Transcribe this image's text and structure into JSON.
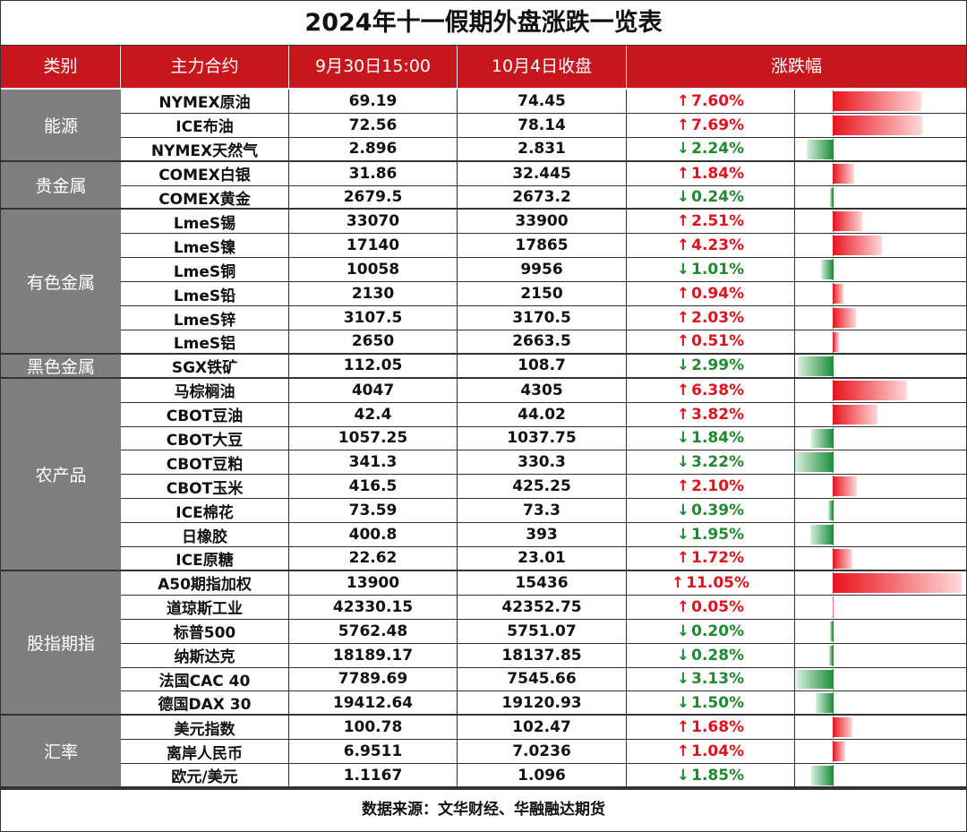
{
  "title": "2024年十一假期外盘涨跌一览表",
  "headers": [
    "类别",
    "主力合约",
    "9月30日15:00",
    "10月4日收盘",
    "涨跌幅"
  ],
  "footer": "数据来源：文华财经、华融融达期货",
  "colors": {
    "header_bg": "#c8161d",
    "category_bg": "#7f7f7f",
    "up": "#e0121d",
    "down": "#1f8a2f"
  },
  "chart_data": {
    "type": "table",
    "title": "2024年十一假期外盘涨跌一览表",
    "columns": [
      "类别",
      "主力合约",
      "9月30日15:00",
      "10月4日收盘",
      "涨跌幅"
    ],
    "groups": [
      {
        "category": "能源",
        "rows": [
          {
            "name": "NYMEX原油",
            "v1": "69.19",
            "v2": "74.45",
            "dir": "up",
            "pct": "7.60%",
            "value": 7.6
          },
          {
            "name": "ICE布油",
            "v1": "72.56",
            "v2": "78.14",
            "dir": "up",
            "pct": "7.69%",
            "value": 7.69
          },
          {
            "name": "NYMEX天然气",
            "v1": "2.896",
            "v2": "2.831",
            "dir": "down",
            "pct": "2.24%",
            "value": -2.24
          }
        ]
      },
      {
        "category": "贵金属",
        "rows": [
          {
            "name": "COMEX白银",
            "v1": "31.86",
            "v2": "32.445",
            "dir": "up",
            "pct": "1.84%",
            "value": 1.84
          },
          {
            "name": "COMEX黄金",
            "v1": "2679.5",
            "v2": "2673.2",
            "dir": "down",
            "pct": "0.24%",
            "value": -0.24
          }
        ]
      },
      {
        "category": "有色金属",
        "rows": [
          {
            "name": "LmeS锡",
            "v1": "33070",
            "v2": "33900",
            "dir": "up",
            "pct": "2.51%",
            "value": 2.51
          },
          {
            "name": "LmeS镍",
            "v1": "17140",
            "v2": "17865",
            "dir": "up",
            "pct": "4.23%",
            "value": 4.23
          },
          {
            "name": "LmeS铜",
            "v1": "10058",
            "v2": "9956",
            "dir": "down",
            "pct": "1.01%",
            "value": -1.01
          },
          {
            "name": "LmeS铅",
            "v1": "2130",
            "v2": "2150",
            "dir": "up",
            "pct": "0.94%",
            "value": 0.94
          },
          {
            "name": "LmeS锌",
            "v1": "3107.5",
            "v2": "3170.5",
            "dir": "up",
            "pct": "2.03%",
            "value": 2.03
          },
          {
            "name": "LmeS铝",
            "v1": "2650",
            "v2": "2663.5",
            "dir": "up",
            "pct": "0.51%",
            "value": 0.51
          }
        ]
      },
      {
        "category": "黑色金属",
        "rows": [
          {
            "name": "SGX铁矿",
            "v1": "112.05",
            "v2": "108.7",
            "dir": "down",
            "pct": "2.99%",
            "value": -2.99
          }
        ]
      },
      {
        "category": "农产品",
        "rows": [
          {
            "name": "马棕榈油",
            "v1": "4047",
            "v2": "4305",
            "dir": "up",
            "pct": "6.38%",
            "value": 6.38
          },
          {
            "name": "CBOT豆油",
            "v1": "42.4",
            "v2": "44.02",
            "dir": "up",
            "pct": "3.82%",
            "value": 3.82
          },
          {
            "name": "CBOT大豆",
            "v1": "1057.25",
            "v2": "1037.75",
            "dir": "down",
            "pct": "1.84%",
            "value": -1.84
          },
          {
            "name": "CBOT豆粕",
            "v1": "341.3",
            "v2": "330.3",
            "dir": "down",
            "pct": "3.22%",
            "value": -3.22
          },
          {
            "name": "CBOT玉米",
            "v1": "416.5",
            "v2": "425.25",
            "dir": "up",
            "pct": "2.10%",
            "value": 2.1
          },
          {
            "name": "ICE棉花",
            "v1": "73.59",
            "v2": "73.3",
            "dir": "down",
            "pct": "0.39%",
            "value": -0.39
          },
          {
            "name": "日橡胶",
            "v1": "400.8",
            "v2": "393",
            "dir": "down",
            "pct": "1.95%",
            "value": -1.95
          },
          {
            "name": "ICE原糖",
            "v1": "22.62",
            "v2": "23.01",
            "dir": "up",
            "pct": "1.72%",
            "value": 1.72
          }
        ]
      },
      {
        "category": "股指期指",
        "rows": [
          {
            "name": "A50期指加权",
            "v1": "13900",
            "v2": "15436",
            "dir": "up",
            "pct": "11.05%",
            "value": 11.05
          },
          {
            "name": "道琼斯工业",
            "v1": "42330.15",
            "v2": "42352.75",
            "dir": "up",
            "pct": "0.05%",
            "value": 0.05
          },
          {
            "name": "标普500",
            "v1": "5762.48",
            "v2": "5751.07",
            "dir": "down",
            "pct": "0.20%",
            "value": -0.2
          },
          {
            "name": "纳斯达克",
            "v1": "18189.17",
            "v2": "18137.85",
            "dir": "down",
            "pct": "0.28%",
            "value": -0.28
          },
          {
            "name": "法国CAC 40",
            "v1": "7789.69",
            "v2": "7545.66",
            "dir": "down",
            "pct": "3.13%",
            "value": -3.13
          },
          {
            "name": "德国DAX 30",
            "v1": "19412.64",
            "v2": "19120.93",
            "dir": "down",
            "pct": "1.50%",
            "value": -1.5
          }
        ]
      },
      {
        "category": "汇率",
        "rows": [
          {
            "name": "美元指数",
            "v1": "100.78",
            "v2": "102.47",
            "dir": "up",
            "pct": "1.68%",
            "value": 1.68
          },
          {
            "name": "离岸人民币",
            "v1": "6.9511",
            "v2": "7.0236",
            "dir": "up",
            "pct": "1.04%",
            "value": 1.04
          },
          {
            "name": "欧元/美元",
            "v1": "1.1167",
            "v2": "1.096",
            "dir": "down",
            "pct": "1.85%",
            "value": -1.85
          }
        ]
      }
    ]
  }
}
